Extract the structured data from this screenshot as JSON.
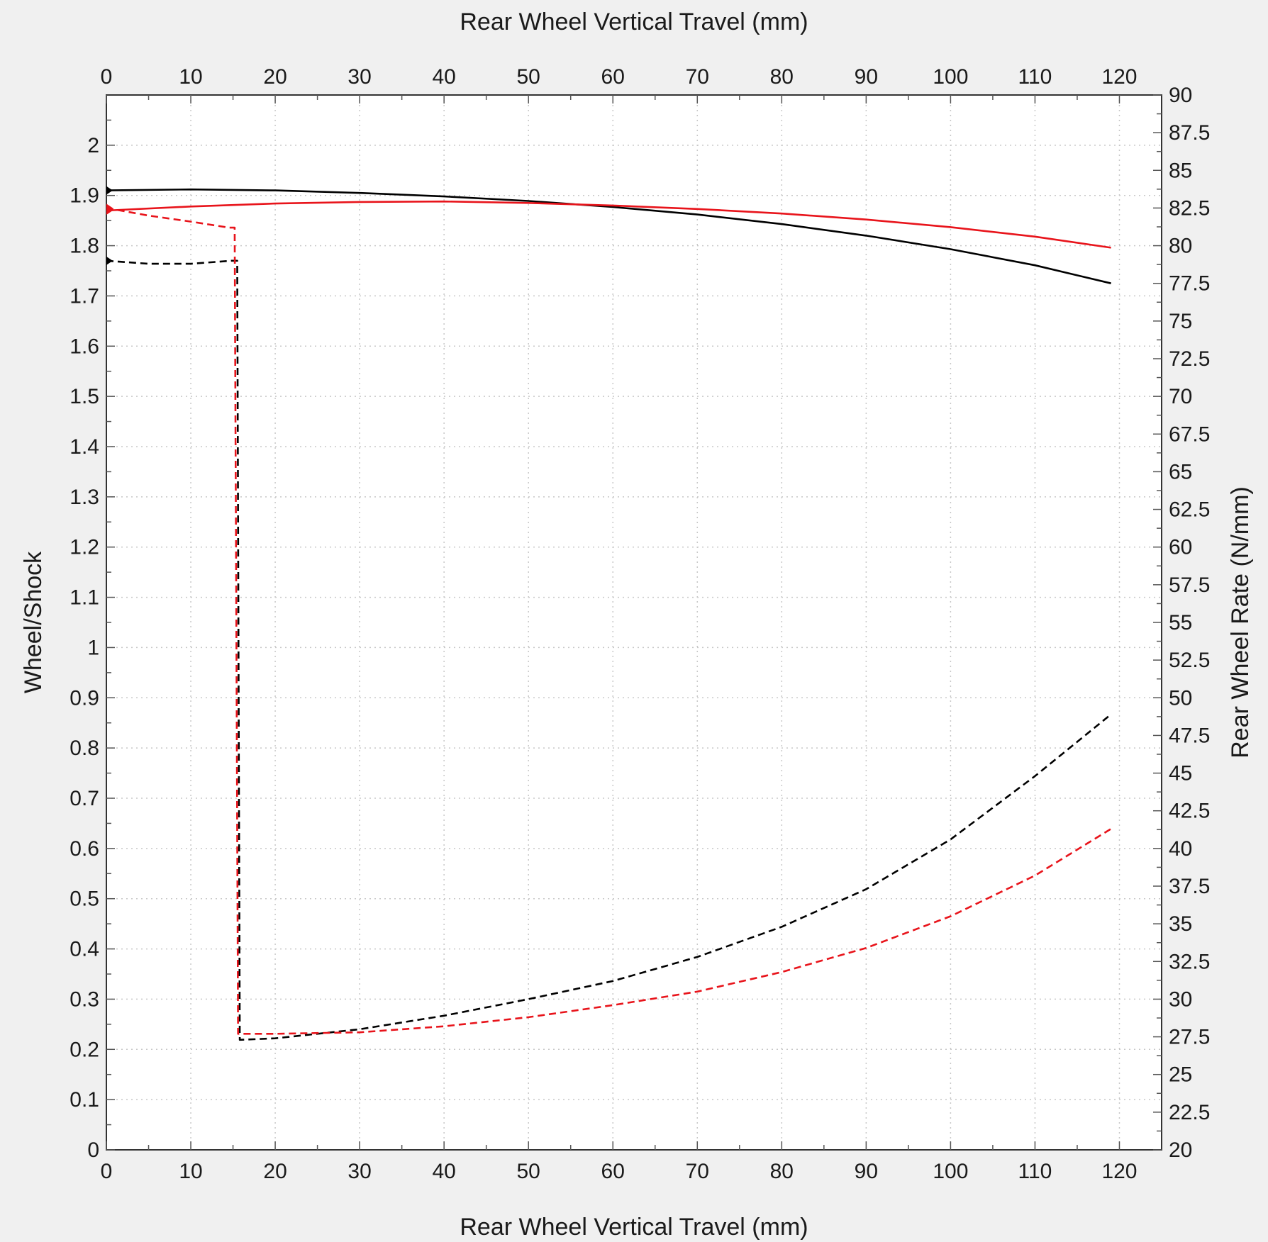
{
  "chart_data": {
    "type": "line",
    "xlabel_top": "Rear Wheel Vertical Travel (mm)",
    "xlabel_bottom": "Rear Wheel Vertical Travel (mm)",
    "ylabel_left": "Wheel/Shock",
    "ylabel_right": "Rear Wheel Rate (N/mm)",
    "xlim": [
      0,
      125
    ],
    "ylim_left": [
      0,
      2.1
    ],
    "ylim_right": [
      20,
      90
    ],
    "x_ticks": [
      "0",
      "10",
      "20",
      "30",
      "40",
      "50",
      "60",
      "70",
      "80",
      "90",
      "100",
      "110",
      "120"
    ],
    "y_left_ticks": [
      "0",
      "0.1",
      "0.2",
      "0.3",
      "0.4",
      "0.5",
      "0.6",
      "0.7",
      "0.8",
      "0.9",
      "1",
      "1.1",
      "1.2",
      "1.3",
      "1.4",
      "1.5",
      "1.6",
      "1.7",
      "1.8",
      "1.9",
      "2"
    ],
    "y_right_ticks": [
      "20",
      "22.5",
      "25",
      "27.5",
      "30",
      "32.5",
      "35",
      "37.5",
      "40",
      "42.5",
      "45",
      "47.5",
      "50",
      "52.5",
      "55",
      "57.5",
      "60",
      "62.5",
      "65",
      "67.5",
      "70",
      "72.5",
      "75",
      "77.5",
      "80",
      "82.5",
      "85",
      "87.5",
      "90"
    ],
    "grid": true,
    "series": [
      {
        "axis": "left",
        "style": "solid",
        "color": "#000000",
        "x": [
          0,
          10,
          20,
          30,
          40,
          50,
          60,
          70,
          80,
          90,
          100,
          110,
          119
        ],
        "y": [
          1.91,
          1.912,
          1.91,
          1.905,
          1.898,
          1.889,
          1.877,
          1.862,
          1.843,
          1.82,
          1.793,
          1.761,
          1.725
        ]
      },
      {
        "axis": "left",
        "style": "solid",
        "color": "#e8141b",
        "x": [
          0,
          10,
          20,
          30,
          40,
          50,
          60,
          70,
          80,
          90,
          100,
          110,
          119
        ],
        "y": [
          1.87,
          1.878,
          1.884,
          1.887,
          1.888,
          1.885,
          1.88,
          1.873,
          1.864,
          1.852,
          1.837,
          1.818,
          1.796
        ]
      },
      {
        "axis": "right",
        "style": "dashed",
        "color": "#000000",
        "x": [
          0,
          5,
          10,
          14.8,
          15.5,
          15.8,
          20,
          30,
          40,
          50,
          60,
          70,
          80,
          90,
          100,
          110,
          119
        ],
        "y": [
          79.0,
          78.8,
          78.8,
          79.0,
          79.0,
          27.3,
          27.4,
          28.0,
          28.9,
          30.0,
          31.2,
          32.8,
          34.8,
          37.3,
          40.6,
          44.8,
          48.9
        ]
      },
      {
        "axis": "right",
        "style": "dashed",
        "color": "#e8141b",
        "x": [
          0,
          5,
          10,
          14.5,
          15.2,
          15.6,
          20,
          30,
          40,
          50,
          60,
          70,
          80,
          90,
          100,
          110,
          119
        ],
        "y": [
          82.5,
          82.0,
          81.6,
          81.2,
          81.2,
          27.7,
          27.7,
          27.8,
          28.2,
          28.8,
          29.6,
          30.5,
          31.8,
          33.4,
          35.5,
          38.2,
          41.3
        ]
      }
    ],
    "start_markers": [
      {
        "x": 0,
        "y": 1.91,
        "axis": "left",
        "color": "#000000"
      },
      {
        "x": 0,
        "y": 1.87,
        "axis": "left",
        "color": "#e8141b"
      },
      {
        "x": 0,
        "y": 79.0,
        "axis": "right",
        "color": "#000000"
      },
      {
        "x": 0,
        "y": 82.5,
        "axis": "right",
        "color": "#e8141b"
      }
    ]
  }
}
